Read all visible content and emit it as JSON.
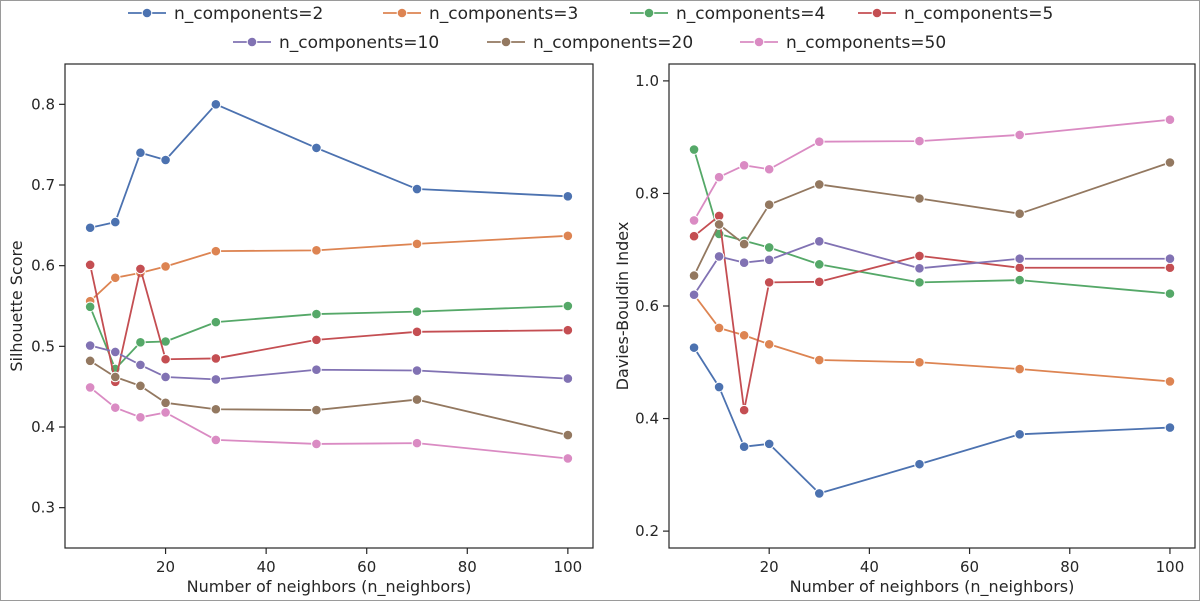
{
  "colors": {
    "n_components=2": "#4c72b0",
    "n_components=3": "#dd8452",
    "n_components=4": "#55a868",
    "n_components=5": "#c44e52",
    "n_components=10": "#8172b3",
    "n_components=20": "#937860",
    "n_components=50": "#da8bc3"
  },
  "chart_data": [
    {
      "type": "line",
      "title": "",
      "xlabel": "Number of neighbors (n_neighbors)",
      "ylabel": "Silhouette Score",
      "xlim": [
        0,
        105
      ],
      "ylim": [
        0.25,
        0.85
      ],
      "xticks": [
        20,
        40,
        60,
        80,
        100
      ],
      "xtick_labels": [
        "20",
        "40",
        "60",
        "80",
        "100"
      ],
      "yticks": [
        0.3,
        0.4,
        0.5,
        0.6,
        0.7,
        0.8
      ],
      "ytick_labels": [
        "0.3",
        "0.4",
        "0.5",
        "0.6",
        "0.7",
        "0.8"
      ],
      "grid": false,
      "x": [
        5,
        10,
        15,
        20,
        30,
        50,
        70,
        100
      ],
      "series": [
        {
          "name": "n_components=2",
          "values": [
            0.647,
            0.654,
            0.74,
            0.731,
            0.8,
            0.746,
            0.695,
            0.686
          ]
        },
        {
          "name": "n_components=3",
          "values": [
            0.556,
            0.585,
            0.591,
            0.599,
            0.618,
            0.619,
            0.627,
            0.637
          ]
        },
        {
          "name": "n_components=4",
          "values": [
            0.549,
            0.472,
            0.505,
            0.506,
            0.53,
            0.54,
            0.543,
            0.55
          ]
        },
        {
          "name": "n_components=5",
          "values": [
            0.601,
            0.456,
            0.596,
            0.484,
            0.485,
            0.508,
            0.518,
            0.52
          ]
        },
        {
          "name": "n_components=10",
          "values": [
            0.501,
            0.493,
            0.477,
            0.462,
            0.459,
            0.471,
            0.47,
            0.46
          ]
        },
        {
          "name": "n_components=20",
          "values": [
            0.482,
            0.462,
            0.451,
            0.43,
            0.422,
            0.421,
            0.434,
            0.39
          ]
        },
        {
          "name": "n_components=50",
          "values": [
            0.449,
            0.424,
            0.412,
            0.418,
            0.384,
            0.379,
            0.38,
            0.361
          ]
        }
      ]
    },
    {
      "type": "line",
      "title": "",
      "xlabel": "Number of neighbors (n_neighbors)",
      "ylabel": "Davies-Bouldin Index",
      "xlim": [
        0,
        105
      ],
      "ylim": [
        0.17,
        1.03
      ],
      "xticks": [
        20,
        40,
        60,
        80,
        100
      ],
      "xtick_labels": [
        "20",
        "40",
        "60",
        "80",
        "100"
      ],
      "yticks": [
        0.2,
        0.4,
        0.6,
        0.8,
        1.0
      ],
      "ytick_labels": [
        "0.2",
        "0.4",
        "0.6",
        "0.8",
        "1.0"
      ],
      "grid": false,
      "x": [
        5,
        10,
        15,
        20,
        30,
        50,
        70,
        100
      ],
      "series": [
        {
          "name": "n_components=2",
          "values": [
            0.526,
            0.456,
            0.35,
            0.355,
            0.267,
            0.319,
            0.372,
            0.384
          ]
        },
        {
          "name": "n_components=3",
          "values": [
            0.62,
            0.561,
            0.548,
            0.532,
            0.504,
            0.5,
            0.488,
            0.466
          ]
        },
        {
          "name": "n_components=4",
          "values": [
            0.878,
            0.728,
            0.716,
            0.704,
            0.674,
            0.642,
            0.646,
            0.622
          ]
        },
        {
          "name": "n_components=5",
          "values": [
            0.724,
            0.76,
            0.415,
            0.642,
            0.643,
            0.689,
            0.668,
            0.668
          ]
        },
        {
          "name": "n_components=10",
          "values": [
            0.62,
            0.688,
            0.677,
            0.682,
            0.715,
            0.667,
            0.684,
            0.684
          ]
        },
        {
          "name": "n_components=20",
          "values": [
            0.654,
            0.745,
            0.71,
            0.78,
            0.816,
            0.791,
            0.764,
            0.855
          ]
        },
        {
          "name": "n_components=50",
          "values": [
            0.752,
            0.829,
            0.85,
            0.843,
            0.892,
            0.893,
            0.904,
            0.931
          ]
        }
      ]
    }
  ],
  "legend": {
    "placement": "top-center",
    "entries": [
      "n_components=2",
      "n_components=3",
      "n_components=4",
      "n_components=5",
      "n_components=10",
      "n_components=20",
      "n_components=50"
    ]
  }
}
